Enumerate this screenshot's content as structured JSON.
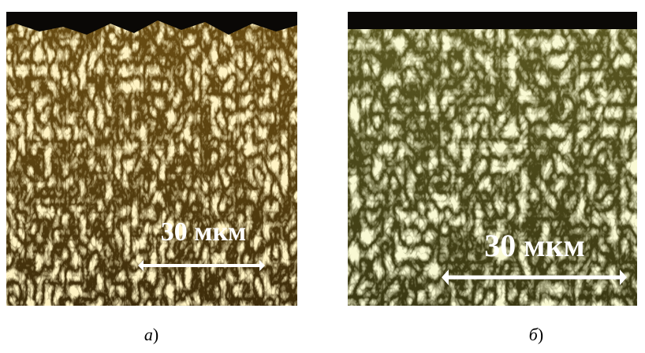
{
  "panels": [
    {
      "scale_label": "30 мкм",
      "caption": {
        "letter": "а",
        "paren": ")"
      }
    },
    {
      "scale_label": "30 мкм",
      "caption": {
        "letter": "б",
        "paren": ")"
      }
    }
  ]
}
